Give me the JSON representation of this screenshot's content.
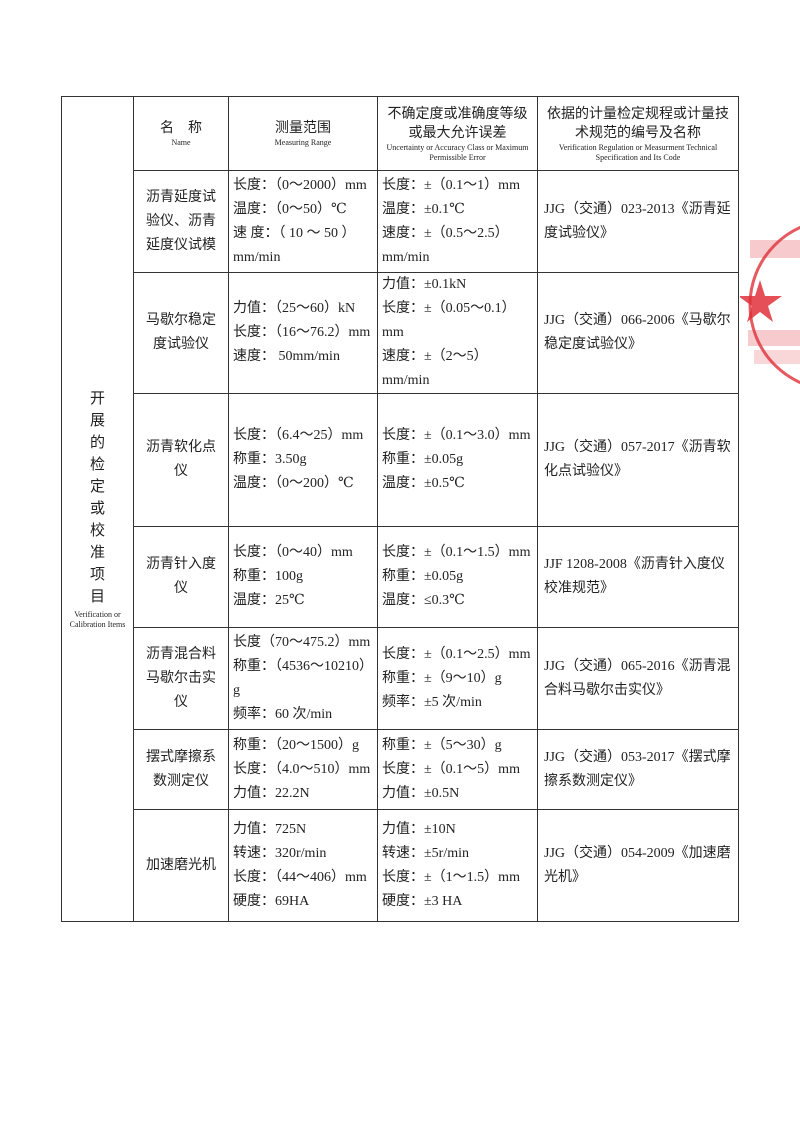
{
  "left_label": "开展的检定或校准项目",
  "left_label_en": "Verification or Calibration Items",
  "table": {
    "headers": [
      {
        "zh": "名　称",
        "en": "Name"
      },
      {
        "zh": "测量范围",
        "en": "Measuring Range"
      },
      {
        "zh": "不确定度或准确度等级或最大允许误差",
        "en": "Uncertainty or Accuracy Class or Maximum Permissible Error"
      },
      {
        "zh": "依据的计量检定规程或计量技术规范的编号及名称",
        "en": "Verification Regulation or Measurment Technical Specification and Its Code"
      }
    ],
    "rows": [
      {
        "name": "沥青延度试验仪、沥青延度仪试模",
        "range": [
          "长度：（0～2000）mm",
          "温度：（0～50）℃",
          "速 度：（ 10 ～ 50 ）mm/min"
        ],
        "uncertainty": [
          "长度：±（0.1～1）mm",
          "温度：±0.1℃",
          "速度：±（0.5～2.5）mm/min"
        ],
        "regulation": "JJG（交通）023-2013《沥青延度试验仪》"
      },
      {
        "name": "马歇尔稳定度试验仪",
        "range": [
          "力值：（25～60）kN",
          "长度：（16～76.2）mm",
          "速度：  50mm/min"
        ],
        "uncertainty": [
          "力值：±0.1kN",
          "长度：±（0.05～0.1）mm",
          "速度：±（2～5）mm/min"
        ],
        "regulation": "JJG（交通）066-2006《马歇尔稳定度试验仪》"
      },
      {
        "name": "沥青软化点仪",
        "range": [
          "长度：（6.4～25）mm",
          "称重：3.50g",
          "温度：（0～200）℃"
        ],
        "uncertainty": [
          "长度：±（0.1～3.0）mm",
          "称重：±0.05g",
          "温度：±0.5℃"
        ],
        "regulation": "JJG（交通）057-2017《沥青软化点试验仪》"
      },
      {
        "name": "沥青针入度仪",
        "range": [
          "长度：（0～40）mm",
          "称重：100g",
          "温度：25℃"
        ],
        "uncertainty": [
          "长度：±（0.1～1.5）mm",
          "称重：±0.05g",
          "温度：≤0.3℃"
        ],
        "regulation": "JJF 1208-2008《沥青针入度仪校准规范》"
      },
      {
        "name": "沥青混合料马歇尔击实仪",
        "range": [
          "长度（70～475.2）mm",
          "称重：（4536～10210）g",
          "频率：60 次/min"
        ],
        "uncertainty": [
          "长度：±（0.1～2.5）mm",
          "称重：±（9～10）g",
          "频率：±5 次/min"
        ],
        "regulation": "JJG（交通）065-2016《沥青混合料马歇尔击实仪》"
      },
      {
        "name": "摆式摩擦系数测定仪",
        "range": [
          "称重：（20～1500）g",
          "长度：（4.0～510）mm",
          "力值：22.2N"
        ],
        "uncertainty": [
          "称重：±（5～30）g",
          "长度：±（0.1～5）mm",
          "力值：±0.5N"
        ],
        "regulation": "JJG（交通）053-2017《摆式摩擦系数测定仪》"
      },
      {
        "name": "加速磨光机",
        "range": [
          "力值：725N",
          "转速：320r/min",
          "长度：（44～406）mm",
          "硬度：69HA"
        ],
        "uncertainty": [
          "力值：±10N",
          "转速：±5r/min",
          "长度：±（1～1.5）mm",
          "硬度：±3 HA"
        ],
        "regulation": "JJG（交通）054-2009《加速磨光机》"
      }
    ]
  }
}
